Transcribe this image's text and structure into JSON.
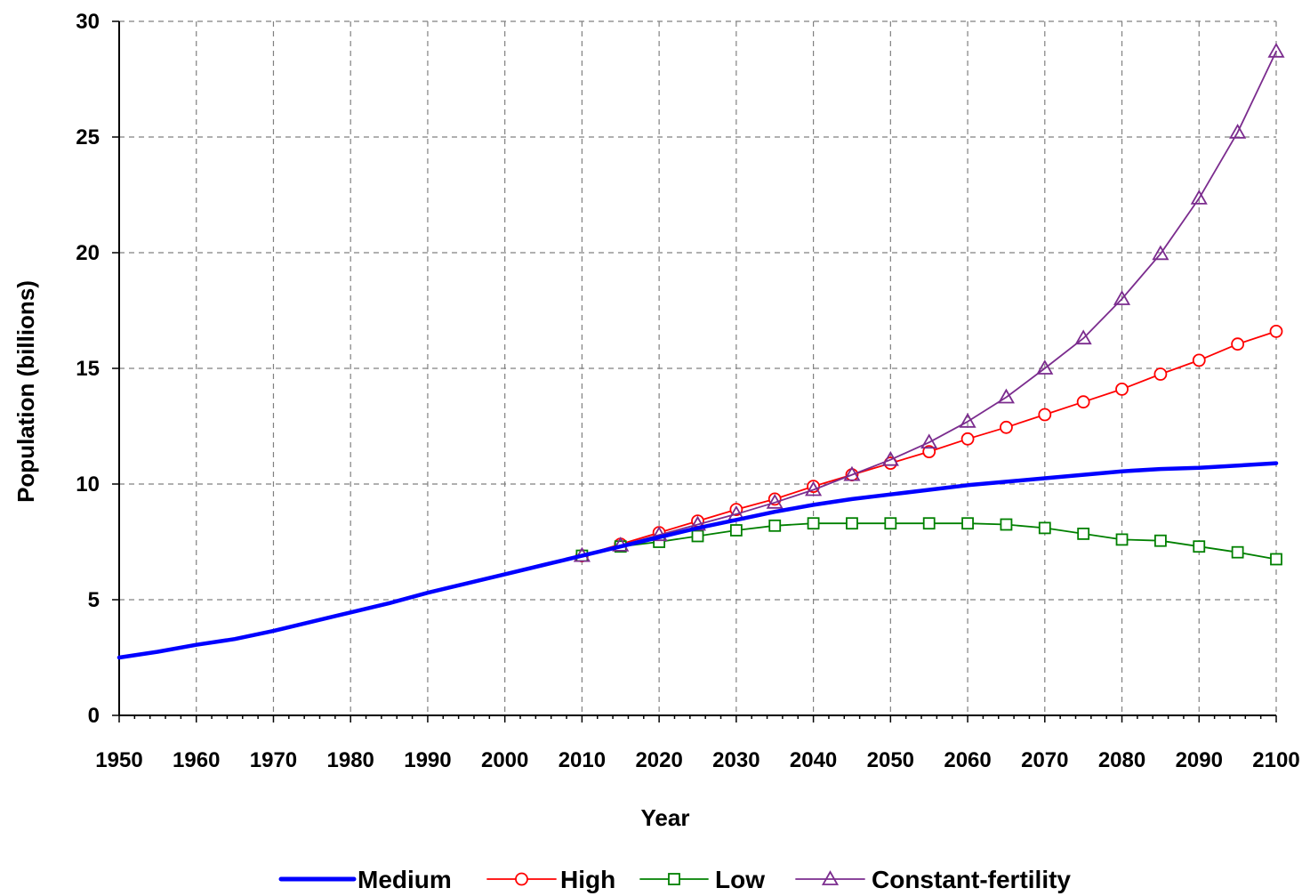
{
  "chart_data": {
    "type": "line",
    "title": "",
    "xlabel": "Year",
    "ylabel": "Population (billions)",
    "xlim": [
      1950,
      2100
    ],
    "ylim": [
      0,
      30
    ],
    "x_ticks": [
      1950,
      1960,
      1970,
      1980,
      1990,
      2000,
      2010,
      2020,
      2030,
      2040,
      2050,
      2060,
      2070,
      2080,
      2090,
      2100
    ],
    "y_ticks": [
      0,
      5,
      10,
      15,
      20,
      25,
      30
    ],
    "x_tick_labels": [
      "1950",
      "1960",
      "1970",
      "1980",
      "1990",
      "2000",
      "2010",
      "2020",
      "2030",
      "2040",
      "2050",
      "2060",
      "2070",
      "2080",
      "2090",
      "2100"
    ],
    "y_tick_labels": [
      "0",
      "5",
      "10",
      "15",
      "20",
      "25",
      "30"
    ],
    "grid": true,
    "legend_position": "bottom",
    "series": [
      {
        "name": "Medium",
        "color": "#0000ff",
        "marker": "none",
        "x": [
          1950,
          1955,
          1960,
          1965,
          1970,
          1975,
          1980,
          1985,
          1990,
          1995,
          2000,
          2005,
          2010,
          2015,
          2020,
          2025,
          2030,
          2035,
          2040,
          2045,
          2050,
          2055,
          2060,
          2065,
          2070,
          2075,
          2080,
          2085,
          2090,
          2095,
          2100
        ],
        "values": [
          2.5,
          2.75,
          3.05,
          3.3,
          3.65,
          4.05,
          4.45,
          4.85,
          5.3,
          5.7,
          6.1,
          6.5,
          6.9,
          7.3,
          7.7,
          8.1,
          8.45,
          8.8,
          9.1,
          9.35,
          9.55,
          9.75,
          9.95,
          10.1,
          10.25,
          10.4,
          10.55,
          10.65,
          10.7,
          10.8,
          10.9
        ]
      },
      {
        "name": "High",
        "color": "#ff0000",
        "marker": "circle",
        "x": [
          2010,
          2015,
          2020,
          2025,
          2030,
          2035,
          2040,
          2045,
          2050,
          2055,
          2060,
          2065,
          2070,
          2075,
          2080,
          2085,
          2090,
          2095,
          2100
        ],
        "values": [
          6.9,
          7.4,
          7.9,
          8.4,
          8.9,
          9.35,
          9.9,
          10.4,
          10.9,
          11.4,
          11.95,
          12.45,
          13.0,
          13.55,
          14.1,
          14.75,
          15.35,
          16.05,
          16.6
        ]
      },
      {
        "name": "Low",
        "color": "#008000",
        "marker": "square",
        "x": [
          2010,
          2015,
          2020,
          2025,
          2030,
          2035,
          2040,
          2045,
          2050,
          2055,
          2060,
          2065,
          2070,
          2075,
          2080,
          2085,
          2090,
          2095,
          2100
        ],
        "values": [
          6.9,
          7.3,
          7.5,
          7.75,
          8.0,
          8.2,
          8.3,
          8.3,
          8.3,
          8.3,
          8.3,
          8.25,
          8.1,
          7.85,
          7.6,
          7.55,
          7.3,
          7.05,
          6.75
        ]
      },
      {
        "name": "Constant-fertility",
        "color": "#7b2c8e",
        "marker": "triangle",
        "x": [
          2010,
          2015,
          2020,
          2025,
          2030,
          2035,
          2040,
          2045,
          2050,
          2055,
          2060,
          2065,
          2070,
          2075,
          2080,
          2085,
          2090,
          2095,
          2100
        ],
        "values": [
          6.9,
          7.35,
          7.8,
          8.25,
          8.7,
          9.2,
          9.75,
          10.4,
          11.05,
          11.8,
          12.7,
          13.75,
          15.0,
          16.3,
          18.0,
          19.95,
          22.35,
          25.2,
          28.7
        ]
      }
    ]
  }
}
